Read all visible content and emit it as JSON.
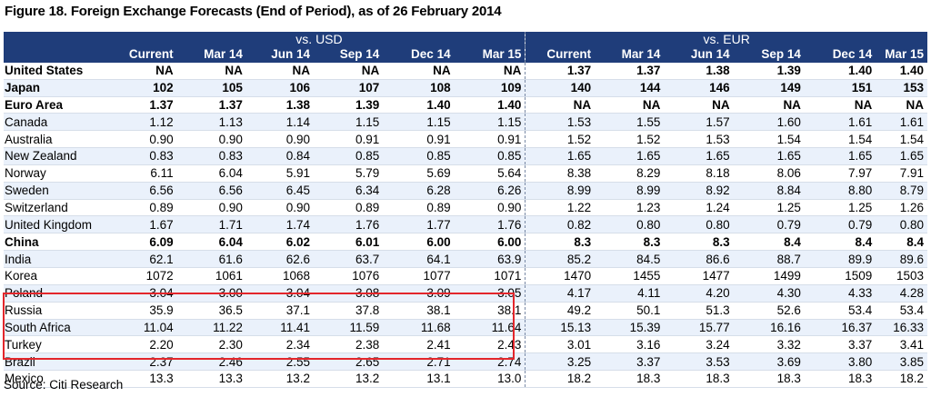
{
  "title": "Figure 18. Foreign Exchange Forecasts (End of Period), as of 26 February 2014",
  "groups": {
    "usd": "vs. USD",
    "eur": "vs. EUR"
  },
  "columns": [
    "Current",
    "Mar 14",
    "Jun 14",
    "Sep 14",
    "Dec 14",
    "Mar 15"
  ],
  "highlight_color": "#e3262b",
  "header_color": "#1f3d7a",
  "rows": [
    {
      "name": "United States",
      "bold": true,
      "usd": [
        "NA",
        "NA",
        "NA",
        "NA",
        "NA",
        "NA"
      ],
      "eur": [
        "1.37",
        "1.37",
        "1.38",
        "1.39",
        "1.40",
        "1.40"
      ]
    },
    {
      "name": "Japan",
      "bold": true,
      "usd": [
        "102",
        "105",
        "106",
        "107",
        "108",
        "109"
      ],
      "eur": [
        "140",
        "144",
        "146",
        "149",
        "151",
        "153"
      ]
    },
    {
      "name": "Euro Area",
      "bold": true,
      "usd": [
        "1.37",
        "1.37",
        "1.38",
        "1.39",
        "1.40",
        "1.40"
      ],
      "eur": [
        "NA",
        "NA",
        "NA",
        "NA",
        "NA",
        "NA"
      ]
    },
    {
      "name": "Canada",
      "bold": false,
      "usd": [
        "1.12",
        "1.13",
        "1.14",
        "1.15",
        "1.15",
        "1.15"
      ],
      "eur": [
        "1.53",
        "1.55",
        "1.57",
        "1.60",
        "1.61",
        "1.61"
      ]
    },
    {
      "name": "Australia",
      "bold": false,
      "usd": [
        "0.90",
        "0.90",
        "0.90",
        "0.91",
        "0.91",
        "0.91"
      ],
      "eur": [
        "1.52",
        "1.52",
        "1.53",
        "1.54",
        "1.54",
        "1.54"
      ]
    },
    {
      "name": "New Zealand",
      "bold": false,
      "usd": [
        "0.83",
        "0.83",
        "0.84",
        "0.85",
        "0.85",
        "0.85"
      ],
      "eur": [
        "1.65",
        "1.65",
        "1.65",
        "1.65",
        "1.65",
        "1.65"
      ]
    },
    {
      "name": "Norway",
      "bold": false,
      "usd": [
        "6.11",
        "6.04",
        "5.91",
        "5.79",
        "5.69",
        "5.64"
      ],
      "eur": [
        "8.38",
        "8.29",
        "8.18",
        "8.06",
        "7.97",
        "7.91"
      ]
    },
    {
      "name": "Sweden",
      "bold": false,
      "usd": [
        "6.56",
        "6.56",
        "6.45",
        "6.34",
        "6.28",
        "6.26"
      ],
      "eur": [
        "8.99",
        "8.99",
        "8.92",
        "8.84",
        "8.80",
        "8.79"
      ]
    },
    {
      "name": "Switzerland",
      "bold": false,
      "usd": [
        "0.89",
        "0.90",
        "0.90",
        "0.89",
        "0.89",
        "0.90"
      ],
      "eur": [
        "1.22",
        "1.23",
        "1.24",
        "1.25",
        "1.25",
        "1.26"
      ]
    },
    {
      "name": "United Kingdom",
      "bold": false,
      "usd": [
        "1.67",
        "1.71",
        "1.74",
        "1.76",
        "1.77",
        "1.76"
      ],
      "eur": [
        "0.82",
        "0.80",
        "0.80",
        "0.79",
        "0.79",
        "0.80"
      ]
    },
    {
      "name": "China",
      "bold": true,
      "usd": [
        "6.09",
        "6.04",
        "6.02",
        "6.01",
        "6.00",
        "6.00"
      ],
      "eur": [
        "8.3",
        "8.3",
        "8.3",
        "8.4",
        "8.4",
        "8.4"
      ]
    },
    {
      "name": "India",
      "bold": false,
      "usd": [
        "62.1",
        "61.6",
        "62.6",
        "63.7",
        "64.1",
        "63.9"
      ],
      "eur": [
        "85.2",
        "84.5",
        "86.6",
        "88.7",
        "89.9",
        "89.6"
      ]
    },
    {
      "name": "Korea",
      "bold": false,
      "usd": [
        "1072",
        "1061",
        "1068",
        "1076",
        "1077",
        "1071"
      ],
      "eur": [
        "1470",
        "1455",
        "1477",
        "1499",
        "1509",
        "1503"
      ]
    },
    {
      "name": "Poland",
      "bold": false,
      "usd": [
        "3.04",
        "3.00",
        "3.04",
        "3.08",
        "3.09",
        "3.05"
      ],
      "eur": [
        "4.17",
        "4.11",
        "4.20",
        "4.30",
        "4.33",
        "4.28"
      ]
    },
    {
      "name": "Russia",
      "bold": false,
      "usd": [
        "35.9",
        "36.5",
        "37.1",
        "37.8",
        "38.1",
        "38.1"
      ],
      "eur": [
        "49.2",
        "50.1",
        "51.3",
        "52.6",
        "53.4",
        "53.4"
      ]
    },
    {
      "name": "South Africa",
      "bold": false,
      "usd": [
        "11.04",
        "11.22",
        "11.41",
        "11.59",
        "11.68",
        "11.64"
      ],
      "eur": [
        "15.13",
        "15.39",
        "15.77",
        "16.16",
        "16.37",
        "16.33"
      ]
    },
    {
      "name": "Turkey",
      "bold": false,
      "usd": [
        "2.20",
        "2.30",
        "2.34",
        "2.38",
        "2.41",
        "2.43"
      ],
      "eur": [
        "3.01",
        "3.16",
        "3.24",
        "3.32",
        "3.37",
        "3.41"
      ]
    },
    {
      "name": "Brazil",
      "bold": false,
      "usd": [
        "2.37",
        "2.46",
        "2.55",
        "2.65",
        "2.71",
        "2.74"
      ],
      "eur": [
        "3.25",
        "3.37",
        "3.53",
        "3.69",
        "3.80",
        "3.85"
      ]
    },
    {
      "name": "Mexico",
      "bold": false,
      "usd": [
        "13.3",
        "13.3",
        "13.2",
        "13.2",
        "13.1",
        "13.0"
      ],
      "eur": [
        "18.2",
        "18.3",
        "18.3",
        "18.3",
        "18.3",
        "18.2"
      ]
    }
  ],
  "source": "Source: Citi Research"
}
